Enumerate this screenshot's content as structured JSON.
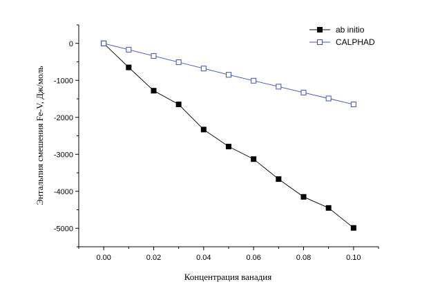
{
  "chart_data": {
    "type": "line",
    "xlabel": "Концентрация ванадия",
    "ylabel": "Энтальпия смешения Fe-V, Дж/моль",
    "xlim": [
      -0.01,
      0.11
    ],
    "ylim": [
      -5500,
      500
    ],
    "x_ticks": [
      "0.00",
      "0.02",
      "0.04",
      "0.06",
      "0.08",
      "0.10"
    ],
    "x_tick_values": [
      0.0,
      0.02,
      0.04,
      0.06,
      0.08,
      0.1
    ],
    "y_ticks": [
      "0",
      "-1000",
      "-2000",
      "-3000",
      "-4000",
      "-5000"
    ],
    "y_tick_values": [
      0,
      -1000,
      -2000,
      -3000,
      -4000,
      -5000
    ],
    "grid": false,
    "legend_position": "top-right",
    "x": [
      0.0,
      0.01,
      0.02,
      0.03,
      0.04,
      0.05,
      0.06,
      0.07,
      0.08,
      0.09,
      0.1
    ],
    "series": [
      {
        "name": "ab initio",
        "color": "#000000",
        "marker": "filled-square",
        "values": [
          0,
          -650,
          -1280,
          -1650,
          -2330,
          -2790,
          -3130,
          -3670,
          -4150,
          -4450,
          -4990
        ]
      },
      {
        "name": "CALPHAD",
        "color": "#3a4fb5",
        "marker": "open-square",
        "values": [
          0,
          -170,
          -340,
          -510,
          -680,
          -850,
          -1010,
          -1170,
          -1330,
          -1490,
          -1650
        ]
      }
    ]
  }
}
